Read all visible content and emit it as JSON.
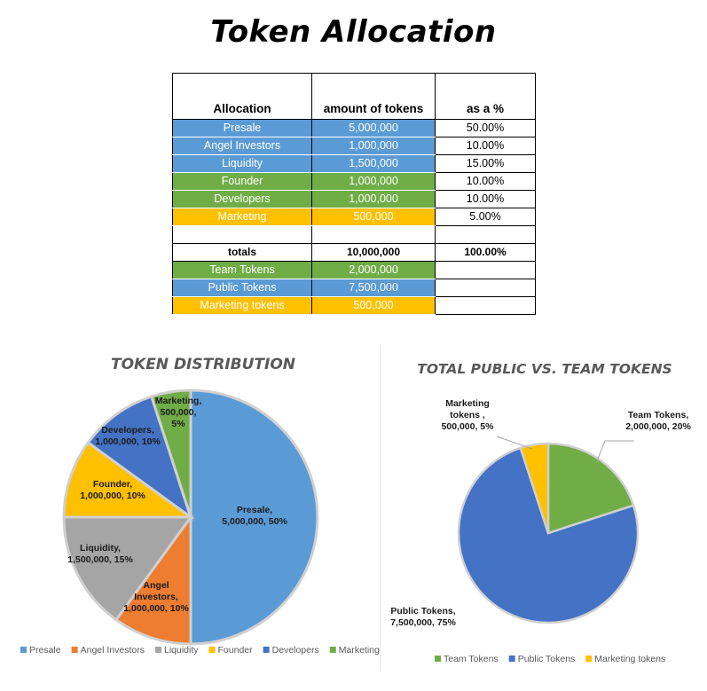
{
  "title": "Token Allocation",
  "table": {
    "headers": [
      "Allocation",
      "amount of tokens",
      "as a %"
    ],
    "rows": [
      {
        "name": "Presale",
        "amount": "5,000,000",
        "pct": "50.00%",
        "color": "#5b9bd5"
      },
      {
        "name": "Angel Investors",
        "amount": "1,000,000",
        "pct": "10.00%",
        "color": "#5b9bd5"
      },
      {
        "name": "Liquidity",
        "amount": "1,500,000",
        "pct": "15.00%",
        "color": "#5b9bd5"
      },
      {
        "name": "Founder",
        "amount": "1,000,000",
        "pct": "10.00%",
        "color": "#70ad47"
      },
      {
        "name": "Developers",
        "amount": "1,000,000",
        "pct": "10.00%",
        "color": "#70ad47"
      },
      {
        "name": "Marketing",
        "amount": "500,000",
        "pct": "5.00%",
        "color": "#ffc000"
      }
    ],
    "totals": {
      "label": "totals",
      "amount": "10,000,000",
      "pct": "100.00%"
    },
    "groups": [
      {
        "name": "Team Tokens",
        "amount": "2,000,000",
        "color": "#70ad47"
      },
      {
        "name": "Public Tokens",
        "amount": "7,500,000",
        "color": "#5b9bd5"
      },
      {
        "name": "Marketing tokens",
        "amount": "500,000",
        "color": "#ffc000"
      }
    ]
  },
  "chart_data": [
    {
      "type": "pie",
      "title": "TOKEN DISTRIBUTION",
      "categories": [
        "Presale",
        "Angel Investors",
        "Liquidity",
        "Founder",
        "Developers",
        "Marketing"
      ],
      "values": [
        5000000,
        1000000,
        1500000,
        1000000,
        1000000,
        500000
      ],
      "percents": [
        50,
        10,
        15,
        10,
        10,
        5
      ],
      "colors": [
        "#5b9bd5",
        "#ed7d31",
        "#a5a5a5",
        "#ffc000",
        "#4472c4",
        "#70ad47"
      ],
      "data_labels": [
        [
          "Presale,",
          "5,000,000, 50%"
        ],
        [
          "Angel",
          "Investors,",
          "1,000,000, 10%"
        ],
        [
          "Liquidity,",
          "1,500,000, 15%"
        ],
        [
          "Founder,",
          "1,000,000, 10%"
        ],
        [
          "Developers,",
          "1,000,000, 10%"
        ],
        [
          "Marketing,",
          "500,000,",
          "5%"
        ]
      ],
      "legend": "bottom"
    },
    {
      "type": "pie",
      "title": "TOTAL PUBLIC VS. TEAM TOKENS",
      "categories": [
        "Team Tokens",
        "Public Tokens",
        "Marketing tokens"
      ],
      "values": [
        2000000,
        7500000,
        500000
      ],
      "percents": [
        20,
        75,
        5
      ],
      "colors": [
        "#70ad47",
        "#4472c4",
        "#ffc000"
      ],
      "data_labels": [
        [
          "Team Tokens,",
          "2,000,000, 20%"
        ],
        [
          "Public Tokens,",
          "7,500,000, 75%"
        ],
        [
          "Marketing",
          "tokens ,",
          "500,000, 5%"
        ]
      ],
      "legend": "bottom"
    }
  ]
}
